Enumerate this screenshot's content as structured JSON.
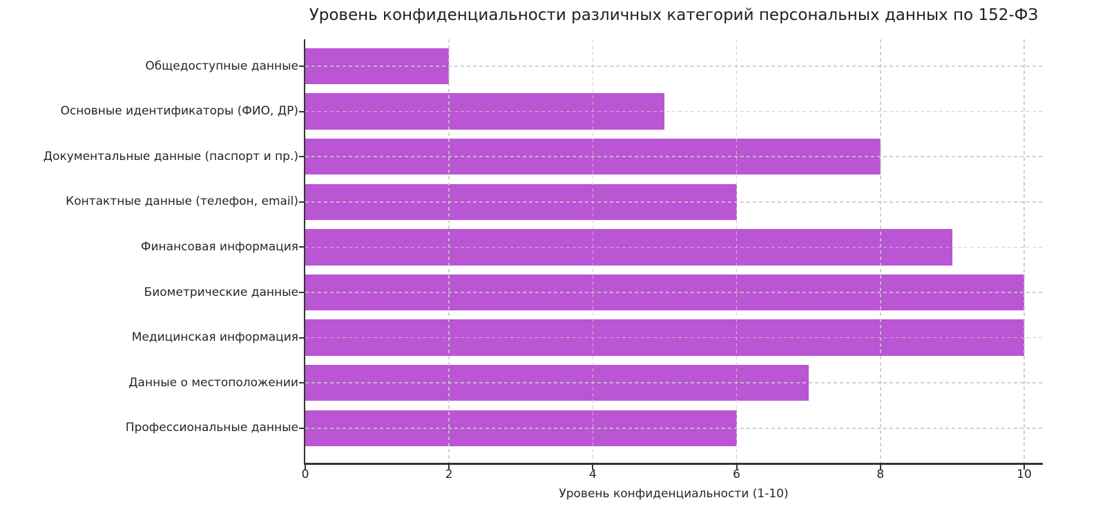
{
  "chart_data": {
    "type": "bar",
    "orientation": "horizontal",
    "title": "Уровень конфиденциальности различных категорий персональных данных по 152-ФЗ",
    "xlabel": "Уровень конфиденциальности (1-10)",
    "ylabel": "",
    "categories": [
      "Общедоступные данные",
      "Основные идентификаторы (ФИО, ДР)",
      "Документальные данные (паспорт и пр.)",
      "Контактные данные (телефон, email)",
      "Финансовая информация",
      "Биометрические данные",
      "Медицинская информация",
      "Данные о местоположении",
      "Профессиональные данные"
    ],
    "values": [
      2,
      5,
      8,
      6,
      9,
      10,
      10,
      7,
      6
    ],
    "xlim": [
      0,
      10.25
    ],
    "xticks": [
      0,
      2,
      4,
      6,
      8,
      10
    ],
    "grid": true,
    "grid_style": "dashed",
    "legend": "none",
    "bar_color": "#BA55D3",
    "grid_color": "#c8c8c8",
    "spine_color": "#333333",
    "text_color": "#262626"
  }
}
